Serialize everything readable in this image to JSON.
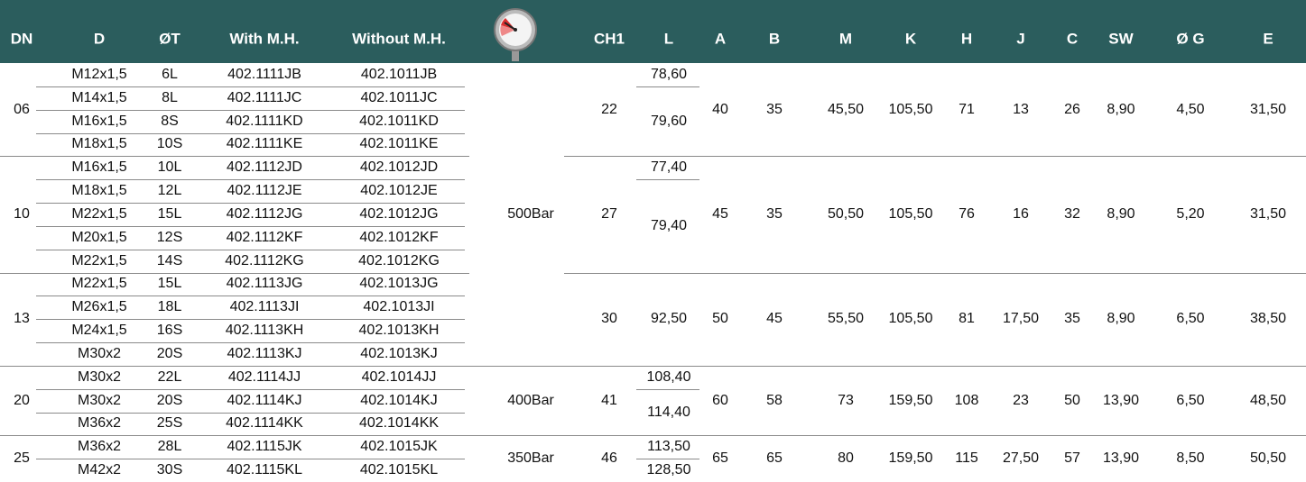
{
  "header": {
    "columns": [
      "DN",
      "D",
      "ØT",
      "With M.H.",
      "Without M.H.",
      "CH1",
      "L",
      "A",
      "B",
      "M",
      "K",
      "H",
      "J",
      "C",
      "SW",
      "Ø G",
      "E"
    ]
  },
  "groups": [
    {
      "dn": "06",
      "rows": [
        [
          "M12x1,5",
          "6L",
          "402.1111JB",
          "402.1011JB"
        ],
        [
          "M14x1,5",
          "8L",
          "402.1111JC",
          "402.1011JC"
        ],
        [
          "M16x1,5",
          "8S",
          "402.1111KD",
          "402.1011KD"
        ],
        [
          "M18x1,5",
          "10S",
          "402.1111KE",
          "402.1011KE"
        ]
      ],
      "pressure": "500Bar",
      "ch1": "22",
      "l": [
        "78,60",
        "79,60"
      ],
      "a": "40",
      "b": "35",
      "m": "45,50",
      "k": "105,50",
      "h": "71",
      "j": "13",
      "c": "26",
      "sw": "8,90",
      "og": "4,50",
      "e": "31,50"
    },
    {
      "dn": "10",
      "rows": [
        [
          "M16x1,5",
          "10L",
          "402.1112JD",
          "402.1012JD"
        ],
        [
          "M18x1,5",
          "12L",
          "402.1112JE",
          "402.1012JE"
        ],
        [
          "M22x1,5",
          "15L",
          "402.1112JG",
          "402.1012JG"
        ],
        [
          "M20x1,5",
          "12S",
          "402.1112KF",
          "402.1012KF"
        ],
        [
          "M22x1,5",
          "14S",
          "402.1112KG",
          "402.1012KG"
        ]
      ],
      "ch1": "27",
      "l": [
        "77,40",
        "79,40"
      ],
      "a": "45",
      "b": "35",
      "m": "50,50",
      "k": "105,50",
      "h": "76",
      "j": "16",
      "c": "32",
      "sw": "8,90",
      "og": "5,20",
      "e": "31,50"
    },
    {
      "dn": "13",
      "rows": [
        [
          "M22x1,5",
          "15L",
          "402.1113JG",
          "402.1013JG"
        ],
        [
          "M26x1,5",
          "18L",
          "402.1113JI",
          "402.1013JI"
        ],
        [
          "M24x1,5",
          "16S",
          "402.1113KH",
          "402.1013KH"
        ],
        [
          "M30x2",
          "20S",
          "402.1113KJ",
          "402.1013KJ"
        ]
      ],
      "ch1": "30",
      "l": [
        "92,50"
      ],
      "a": "50",
      "b": "45",
      "m": "55,50",
      "k": "105,50",
      "h": "81",
      "j": "17,50",
      "c": "35",
      "sw": "8,90",
      "og": "6,50",
      "e": "38,50"
    },
    {
      "dn": "20",
      "rows": [
        [
          "M30x2",
          "22L",
          "402.1114JJ",
          "402.1014JJ"
        ],
        [
          "M30x2",
          "20S",
          "402.1114KJ",
          "402.1014KJ"
        ],
        [
          "M36x2",
          "25S",
          "402.1114KK",
          "402.1014KK"
        ]
      ],
      "pressure": "400Bar",
      "ch1": "41",
      "l": [
        "108,40",
        "114,40"
      ],
      "a": "60",
      "b": "58",
      "m": "73",
      "k": "159,50",
      "h": "108",
      "j": "23",
      "c": "50",
      "sw": "13,90",
      "og": "6,50",
      "e": "48,50"
    },
    {
      "dn": "25",
      "rows": [
        [
          "M36x2",
          "28L",
          "402.1115JK",
          "402.1015JK"
        ],
        [
          "M42x2",
          "30S",
          "402.1115KL",
          "402.1015KL"
        ]
      ],
      "pressure": "350Bar",
      "ch1": "46",
      "l": [
        "113,50",
        "128,50"
      ],
      "a": "65",
      "b": "65",
      "m": "80",
      "k": "159,50",
      "h": "115",
      "j": "27,50",
      "c": "57",
      "sw": "13,90",
      "og": "8,50",
      "e": "50,50"
    }
  ]
}
